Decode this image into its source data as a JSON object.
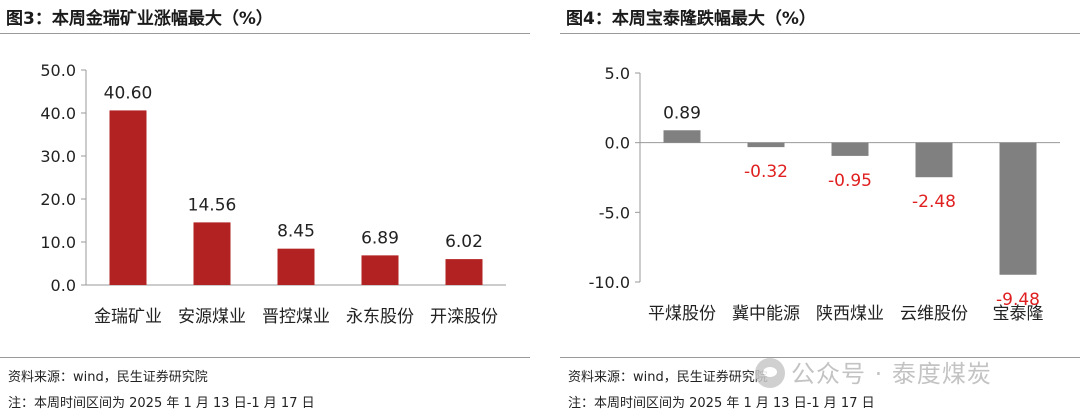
{
  "charts": {
    "left": {
      "title": "图3：本周金瑞矿业涨幅最大（%）",
      "source": "资料来源：wind，民生证券研究院",
      "period": "注：本周时间区间为 2025 年 1 月 13 日-1 月 17 日"
    },
    "right": {
      "title": "图4：本周宝泰隆跌幅最大（%）",
      "source": "资料来源：wind，民生证券研究院",
      "period": "注：本周时间区间为 2025 年 1 月 13 日-1 月 17 日"
    }
  },
  "watermark": {
    "text": "公众号 · 泰度煤炭",
    "icon": "wechat-icon"
  },
  "colors": {
    "gain": "#b22222",
    "loss_bar": "#808080",
    "loss_label": "#e02020",
    "text": "#222222"
  },
  "chart_data": [
    {
      "type": "bar",
      "title": "",
      "categories": [
        "金瑞矿业",
        "安源煤业",
        "晋控煤业",
        "永东股份",
        "开滦股份"
      ],
      "values": [
        40.6,
        14.56,
        8.45,
        6.89,
        6.02
      ],
      "value_labels": [
        "40.60",
        "14.56",
        "8.45",
        "6.89",
        "6.02"
      ],
      "ylim": [
        0,
        50
      ],
      "yticks": [
        0,
        10,
        20,
        30,
        40,
        50
      ],
      "ytick_labels": [
        "0.0",
        "10.0",
        "20.0",
        "30.0",
        "40.0",
        "50.0"
      ],
      "grid": false,
      "legend": "none"
    },
    {
      "type": "bar",
      "title": "",
      "categories": [
        "平煤股份",
        "冀中能源",
        "陕西煤业",
        "云维股份",
        "宝泰隆"
      ],
      "values": [
        0.89,
        -0.32,
        -0.95,
        -2.48,
        -9.48
      ],
      "value_labels": [
        "0.89",
        "-0.32",
        "-0.95",
        "-2.48",
        "-9.48"
      ],
      "ylim": [
        -10,
        5
      ],
      "yticks": [
        -10,
        -5,
        0,
        5
      ],
      "ytick_labels": [
        "-10.0",
        "-5.0",
        "0.0",
        "5.0"
      ],
      "grid": false,
      "legend": "none"
    }
  ]
}
